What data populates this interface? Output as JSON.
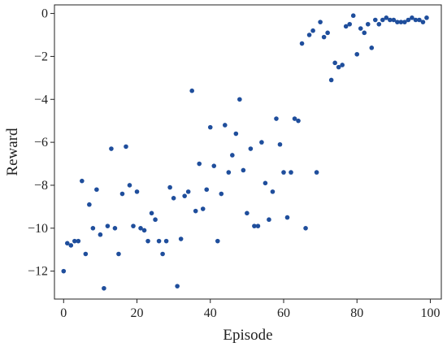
{
  "chart_data": {
    "type": "scatter",
    "xlabel": "Episode",
    "ylabel": "Reward",
    "xlim": [
      -2.5,
      103
    ],
    "ylim": [
      -13.3,
      0.4
    ],
    "xticks": [
      0,
      20,
      40,
      60,
      80,
      100
    ],
    "yticks": [
      0,
      -2,
      -4,
      -6,
      -8,
      -10,
      -12
    ],
    "grid": false,
    "marker_color": "#1f4e9c",
    "series": [
      {
        "x": [
          0,
          1,
          2,
          3,
          4,
          5,
          6,
          7,
          8,
          9,
          10,
          11,
          12,
          13,
          14,
          15,
          16,
          17,
          18,
          19,
          20,
          21,
          22,
          23,
          24,
          25,
          26,
          27,
          28,
          29,
          30,
          31,
          32,
          33,
          34,
          35,
          36,
          37,
          38,
          39,
          40,
          41,
          42,
          43,
          44,
          45,
          46,
          47,
          48,
          49,
          50,
          51,
          52,
          53,
          54,
          55,
          56,
          57,
          58,
          59,
          60,
          61,
          62,
          63,
          64,
          65,
          66,
          67,
          68,
          69,
          70,
          71,
          72,
          73,
          74,
          75,
          76,
          77,
          78,
          79,
          80,
          81,
          82,
          83,
          84,
          85,
          86,
          87,
          88,
          89,
          90,
          91,
          92,
          93,
          94,
          95,
          96,
          97,
          98,
          99
        ],
        "y": [
          -12.0,
          -10.7,
          -10.8,
          -10.6,
          -10.6,
          -7.8,
          -11.2,
          -8.9,
          -10.0,
          -8.2,
          -10.3,
          -12.8,
          -9.9,
          -6.3,
          -10.0,
          -11.2,
          -8.4,
          -6.2,
          -8.0,
          -9.9,
          -8.3,
          -10.0,
          -10.1,
          -10.6,
          -9.3,
          -9.6,
          -10.6,
          -11.2,
          -10.6,
          -8.1,
          -8.6,
          -12.7,
          -10.5,
          -8.5,
          -8.3,
          -3.6,
          -9.2,
          -7.0,
          -9.1,
          -8.2,
          -5.3,
          -7.1,
          -10.6,
          -8.4,
          -5.2,
          -7.4,
          -6.6,
          -5.6,
          -4.0,
          -7.3,
          -9.3,
          -6.3,
          -9.9,
          -9.9,
          -6.0,
          -7.9,
          -9.6,
          -8.3,
          -4.9,
          -6.1,
          -7.4,
          -9.5,
          -7.4,
          -4.9,
          -5.0,
          -1.4,
          -10.0,
          -1.0,
          -0.8,
          -7.4,
          -0.4,
          -1.1,
          -0.9,
          -3.1,
          -2.3,
          -2.5,
          -2.4,
          -0.6,
          -0.5,
          -0.1,
          -1.9,
          -0.7,
          -0.9,
          -0.5,
          -1.6,
          -0.3,
          -0.5,
          -0.3,
          -0.2,
          -0.3,
          -0.3,
          -0.4,
          -0.4,
          -0.4,
          -0.3,
          -0.2,
          -0.3,
          -0.3,
          -0.4,
          -0.2
        ]
      }
    ]
  }
}
